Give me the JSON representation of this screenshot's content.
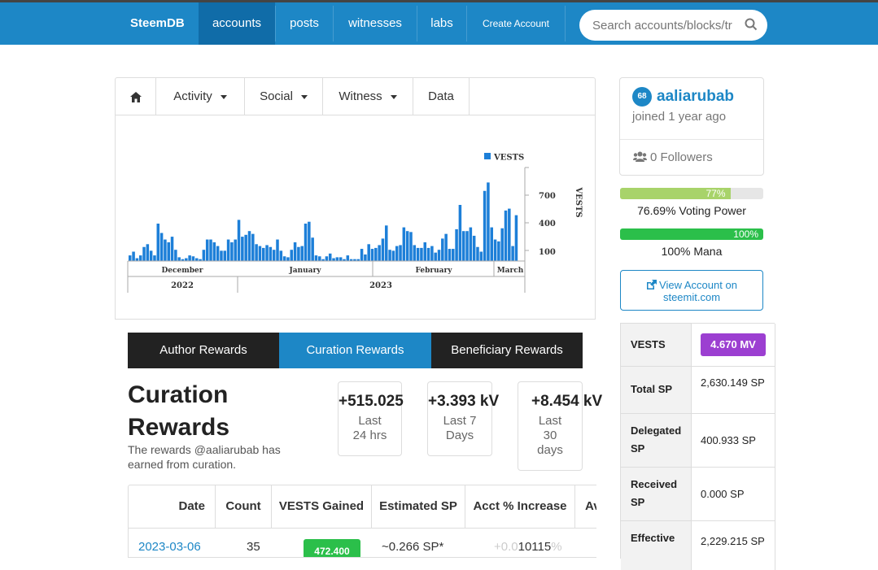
{
  "nav": {
    "brand": "SteemDB",
    "links": [
      "accounts",
      "posts",
      "witnesses",
      "labs",
      "Create Account"
    ],
    "search_placeholder": "Search accounts/blocks/tr"
  },
  "account_tabs": [
    "Activity",
    "Social",
    "Witness",
    "Data"
  ],
  "chart_data": {
    "type": "bar",
    "legend": "VESTS",
    "y_label": "VESTS",
    "y_ticks": [
      100,
      400,
      700
    ],
    "ylim": [
      0,
      1000
    ],
    "month_labels": [
      "December",
      "January",
      "February",
      "March"
    ],
    "year_labels": [
      "2022",
      "2023"
    ],
    "values": [
      60,
      100,
      30,
      60,
      150,
      180,
      110,
      60,
      400,
      300,
      230,
      200,
      260,
      120,
      40,
      20,
      30,
      60,
      50,
      30,
      20,
      120,
      230,
      230,
      200,
      160,
      110,
      110,
      230,
      200,
      230,
      440,
      260,
      280,
      320,
      290,
      180,
      160,
      140,
      170,
      150,
      120,
      230,
      110,
      50,
      40,
      120,
      200,
      150,
      160,
      400,
      420,
      250,
      60,
      50,
      20,
      50,
      80,
      30,
      40,
      40,
      20,
      60,
      20,
      20,
      20,
      130,
      70,
      180,
      130,
      140,
      170,
      240,
      380,
      120,
      110,
      160,
      170,
      360,
      320,
      310,
      170,
      140,
      140,
      200,
      140,
      160,
      90,
      120,
      240,
      290,
      130,
      130,
      340,
      600,
      320,
      320,
      360,
      270,
      150,
      100,
      750,
      840,
      360,
      230,
      210,
      350,
      540,
      560,
      160,
      490
    ],
    "approx": true
  },
  "rewards_tabs": [
    "Author Rewards",
    "Curation Rewards",
    "Beneficiary Rewards"
  ],
  "section": {
    "title": "Curation Rewards",
    "subtitle": "The rewards @aaliarubab has earned from curation."
  },
  "stats": [
    {
      "value": "+515.025",
      "label": "Last 24 hrs"
    },
    {
      "value": "+3.393 kV",
      "label": "Last 7 Days"
    },
    {
      "value": "+8.454 kV",
      "label": "Last 30 days"
    }
  ],
  "table": {
    "headers": [
      "Date",
      "Count",
      "VESTS Gained",
      "Estimated SP",
      "Acct % Increase",
      "Av"
    ],
    "row": {
      "date": "2023-03-06",
      "count": "35",
      "vests": "472.400",
      "sp": "~0.266 SP*",
      "pct_prefix": "+0.0",
      "pct_value": "10115",
      "pct_suffix": "%"
    }
  },
  "profile": {
    "reputation": "68",
    "username": "aaliarubab",
    "joined": "joined 1 year ago",
    "followers": "0 Followers"
  },
  "voting": {
    "pct": 77,
    "bar_label": "77%",
    "text": "76.69% Voting Power",
    "color": "#a8d36a"
  },
  "mana": {
    "pct": 100,
    "bar_label": "100%",
    "text": "100% Mana",
    "color": "#2bbf4a"
  },
  "view_button": {
    "line1": "View Account on",
    "line2": "steemit.com"
  },
  "props": [
    {
      "key": "VESTS",
      "value": "4.670 MV"
    },
    {
      "key": "Total SP",
      "value": "2,630.149 SP"
    },
    {
      "key": "Delegated SP",
      "value": "400.933 SP"
    },
    {
      "key": "Received SP",
      "value": "0.000 SP"
    },
    {
      "key": "Effective",
      "value": "2,229.215 SP"
    }
  ]
}
